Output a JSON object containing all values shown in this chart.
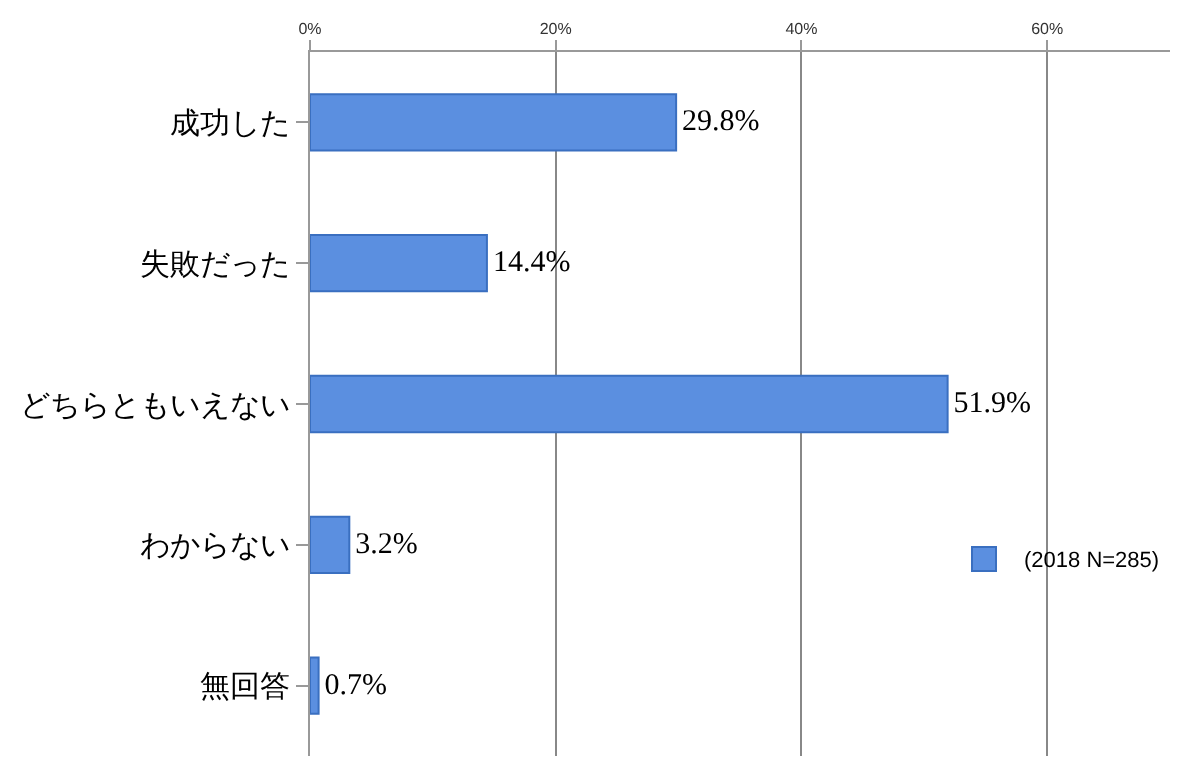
{
  "chart_data": {
    "type": "bar",
    "orientation": "horizontal",
    "categories": [
      "成功した",
      "失敗だった",
      "どちらともいえない",
      "わからない",
      "無回答"
    ],
    "series": [
      {
        "name": "(2018 N=285)",
        "color": "#5b8fe0",
        "values": [
          29.8,
          14.4,
          51.9,
          3.2,
          0.7
        ],
        "value_labels": [
          "29.8%",
          "14.4%",
          "51.9%",
          "3.2%",
          "0.7%"
        ]
      }
    ],
    "xlim": [
      0,
      70
    ],
    "xticks": [
      {
        "value": 0,
        "label": "0%"
      },
      {
        "value": 20,
        "label": "20%"
      },
      {
        "value": 40,
        "label": "40%"
      },
      {
        "value": 60,
        "label": "60%"
      }
    ],
    "grid": "x",
    "legend": "right"
  }
}
